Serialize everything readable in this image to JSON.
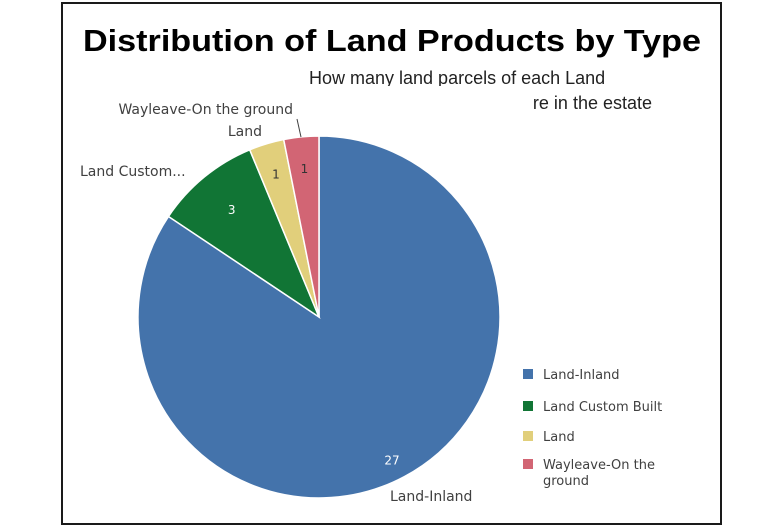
{
  "chart_data": {
    "type": "pie",
    "title": "Distribution of Land Products by Type",
    "subtitle_line1": "How many land parcels of each Land",
    "subtitle_line2": "re in the estate",
    "slices": [
      {
        "label": "Land-Inland",
        "outer_label": "Land-Inland",
        "value": 27,
        "value_label": "27",
        "color": "#4473ab",
        "label_color": "#ffffff"
      },
      {
        "label": "Land Custom Built",
        "outer_label": "Land Custom...",
        "value": 3,
        "value_label": "3",
        "color": "#117535",
        "label_color": "#ffffff"
      },
      {
        "label": "Land",
        "outer_label": "Land",
        "value": 1,
        "value_label": "1",
        "color": "#e1cf7b",
        "label_color": "#333333"
      },
      {
        "label": "Wayleave-On the ground",
        "outer_label": "Wayleave-On the ground",
        "value": 1,
        "value_label": "1",
        "color": "#d26574",
        "label_color": "#333333"
      }
    ],
    "legend": {
      "placement": "bottom-right",
      "items": [
        {
          "label": "Land-Inland",
          "color": "#4473ab"
        },
        {
          "label": "Land Custom Built",
          "color": "#117535"
        },
        {
          "label": "Land",
          "color": "#e1cf7b"
        },
        {
          "label": "Wayleave-On the ground",
          "line1": "Wayleave-On the",
          "line2": "ground",
          "color": "#d26574"
        }
      ]
    }
  }
}
